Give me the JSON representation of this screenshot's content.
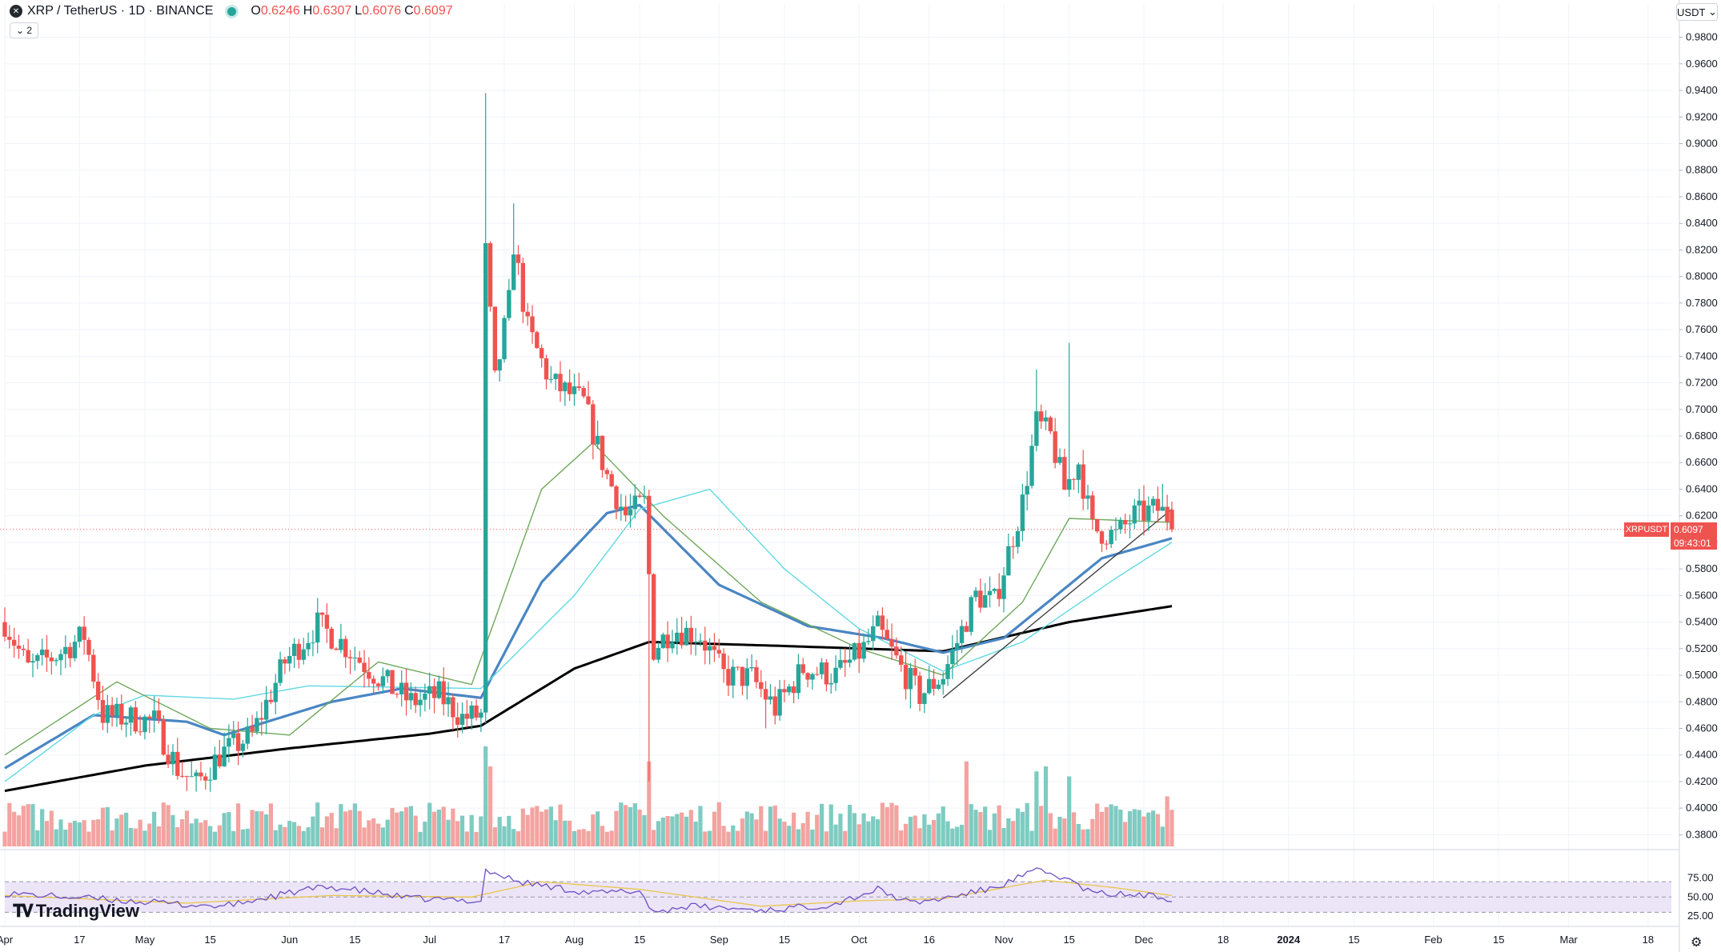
{
  "header": {
    "symbol_title": "XRP / TetherUS · 1D · BINANCE",
    "symbol_icon": "xrp-logo-icon",
    "open_label": "O",
    "open_value": "0.6246",
    "high_label": "H",
    "high_value": "0.6307",
    "low_label": "L",
    "low_value": "0.6076",
    "close_label": "C",
    "close_value": "0.6097",
    "collapse_count": "2"
  },
  "currency_select": {
    "value": "USDT"
  },
  "price_label": {
    "symbol": "XRPUSDT",
    "value": "0.6097",
    "countdown": "09:43:01"
  },
  "branding": {
    "name": "TradingView"
  },
  "colors": {
    "up": "#26a69a",
    "down": "#ef5350",
    "up_volume": "#7ecbc1",
    "down_volume": "#f3a3a0",
    "ma_black": "#000000",
    "ma_blue": "#4a86c3",
    "ma_cyan": "#61d9e4",
    "ma_green": "#6fa85c",
    "trendline": "#444444",
    "rsi_line": "#6c4fc2",
    "rsi_signal": "#e9c54b",
    "rsi_band": "#ece5f8"
  },
  "chart_data": [
    {
      "type": "candlestick",
      "title": "XRP / TetherUS · 1D · BINANCE",
      "xlabel": "",
      "ylabel": "",
      "ylim": [
        0.37,
        0.99
      ],
      "y_ticks": [
        "0.3800",
        "0.4000",
        "0.4200",
        "0.4400",
        "0.4600",
        "0.4800",
        "0.5000",
        "0.5200",
        "0.5400",
        "0.5600",
        "0.5800",
        "0.6000",
        "0.6200",
        "0.6400",
        "0.6600",
        "0.6800",
        "0.7000",
        "0.7200",
        "0.7400",
        "0.7600",
        "0.7800",
        "0.8000",
        "0.8200",
        "0.8400",
        "0.8600",
        "0.8800",
        "0.9000",
        "0.9200",
        "0.9400",
        "0.9600",
        "0.9800"
      ],
      "x_range": [
        "2023-04-01",
        "2024-03-23"
      ],
      "x_ticks": [
        {
          "date": "2023-04-01",
          "label": "Apr"
        },
        {
          "date": "2023-04-17",
          "label": "17"
        },
        {
          "date": "2023-05-01",
          "label": "May"
        },
        {
          "date": "2023-05-15",
          "label": "15"
        },
        {
          "date": "2023-06-01",
          "label": "Jun"
        },
        {
          "date": "2023-06-15",
          "label": "15"
        },
        {
          "date": "2023-07-01",
          "label": "Jul"
        },
        {
          "date": "2023-07-17",
          "label": "17"
        },
        {
          "date": "2023-08-01",
          "label": "Aug"
        },
        {
          "date": "2023-08-15",
          "label": "15"
        },
        {
          "date": "2023-09-01",
          "label": "Sep"
        },
        {
          "date": "2023-09-15",
          "label": "15"
        },
        {
          "date": "2023-10-01",
          "label": "Oct"
        },
        {
          "date": "2023-10-16",
          "label": "16"
        },
        {
          "date": "2023-11-01",
          "label": "Nov"
        },
        {
          "date": "2023-11-15",
          "label": "15"
        },
        {
          "date": "2023-12-01",
          "label": "Dec"
        },
        {
          "date": "2023-12-18",
          "label": "18"
        },
        {
          "date": "2024-01-01",
          "label": "2024"
        },
        {
          "date": "2024-01-15",
          "label": "15"
        },
        {
          "date": "2024-02-01",
          "label": "Feb"
        },
        {
          "date": "2024-02-15",
          "label": "15"
        },
        {
          "date": "2024-03-01",
          "label": "Mar"
        },
        {
          "date": "2024-03-18",
          "label": "18"
        }
      ],
      "anchors": [
        [
          "2023-04-01",
          0.54
        ],
        [
          "2023-04-06",
          0.505
        ],
        [
          "2023-04-12",
          0.515
        ],
        [
          "2023-04-18",
          0.53
        ],
        [
          "2023-04-22",
          0.47
        ],
        [
          "2023-04-27",
          0.468
        ],
        [
          "2023-05-03",
          0.465
        ],
        [
          "2023-05-08",
          0.43
        ],
        [
          "2023-05-12",
          0.418
        ],
        [
          "2023-05-17",
          0.44
        ],
        [
          "2023-05-24",
          0.455
        ],
        [
          "2023-05-31",
          0.51
        ],
        [
          "2023-06-07",
          0.538
        ],
        [
          "2023-06-12",
          0.525
        ],
        [
          "2023-06-18",
          0.505
        ],
        [
          "2023-06-23",
          0.49
        ],
        [
          "2023-06-27",
          0.48
        ],
        [
          "2023-07-03",
          0.485
        ],
        [
          "2023-07-08",
          0.468
        ],
        [
          "2023-07-12",
          0.47
        ],
        [
          "2023-07-13",
          0.818
        ],
        [
          "2023-07-15",
          0.72
        ],
        [
          "2023-07-18",
          0.78
        ],
        [
          "2023-07-19",
          0.825
        ],
        [
          "2023-07-22",
          0.76
        ],
        [
          "2023-07-27",
          0.72
        ],
        [
          "2023-08-03",
          0.705
        ],
        [
          "2023-08-08",
          0.65
        ],
        [
          "2023-08-12",
          0.62
        ],
        [
          "2023-08-16",
          0.63
        ],
        [
          "2023-08-18",
          0.52
        ],
        [
          "2023-08-22",
          0.535
        ],
        [
          "2023-08-28",
          0.53
        ],
        [
          "2023-09-02",
          0.5
        ],
        [
          "2023-09-08",
          0.498
        ],
        [
          "2023-09-13",
          0.475
        ],
        [
          "2023-09-19",
          0.505
        ],
        [
          "2023-09-26",
          0.5
        ],
        [
          "2023-10-02",
          0.52
        ],
        [
          "2023-10-05",
          0.535
        ],
        [
          "2023-10-10",
          0.505
        ],
        [
          "2023-10-14",
          0.485
        ],
        [
          "2023-10-19",
          0.5
        ],
        [
          "2023-10-22",
          0.525
        ],
        [
          "2023-10-26",
          0.56
        ],
        [
          "2023-10-30",
          0.555
        ],
        [
          "2023-11-05",
          0.63
        ],
        [
          "2023-11-08",
          0.69
        ],
        [
          "2023-11-11",
          0.68
        ],
        [
          "2023-11-14",
          0.64
        ],
        [
          "2023-11-17",
          0.66
        ],
        [
          "2023-11-20",
          0.61
        ],
        [
          "2023-11-25",
          0.605
        ],
        [
          "2023-11-29",
          0.62
        ],
        [
          "2023-12-04",
          0.625
        ],
        [
          "2023-12-06",
          0.62
        ],
        [
          "2023-12-07",
          0.6097
        ]
      ],
      "notable_highs": [
        [
          "2023-07-13",
          0.938
        ],
        [
          "2023-07-19",
          0.855
        ],
        [
          "2023-11-08",
          0.73
        ],
        [
          "2023-11-15",
          0.75
        ],
        [
          "2023-12-05",
          0.644
        ]
      ],
      "notable_lows": [
        [
          "2023-08-17",
          0.42
        ],
        [
          "2023-09-11",
          0.46
        ],
        [
          "2023-10-12",
          0.475
        ]
      ],
      "moving_averages": [
        {
          "color": "#000000",
          "anchors": [
            [
              "2023-04-01",
              0.413
            ],
            [
              "2023-05-01",
              0.432
            ],
            [
              "2023-06-01",
              0.445
            ],
            [
              "2023-07-01",
              0.456
            ],
            [
              "2023-07-12",
              0.462
            ],
            [
              "2023-08-01",
              0.505
            ],
            [
              "2023-08-17",
              0.525
            ],
            [
              "2023-09-15",
              0.522
            ],
            [
              "2023-10-19",
              0.518
            ],
            [
              "2023-11-15",
              0.54
            ],
            [
              "2023-12-07",
              0.552
            ]
          ]
        },
        {
          "color": "#4a86c3",
          "anchors": [
            [
              "2023-04-01",
              0.43
            ],
            [
              "2023-04-20",
              0.47
            ],
            [
              "2023-05-10",
              0.465
            ],
            [
              "2023-05-18",
              0.455
            ],
            [
              "2023-06-10",
              0.48
            ],
            [
              "2023-06-25",
              0.49
            ],
            [
              "2023-07-12",
              0.483
            ],
            [
              "2023-07-25",
              0.57
            ],
            [
              "2023-08-08",
              0.622
            ],
            [
              "2023-08-15",
              0.628
            ],
            [
              "2023-09-01",
              0.568
            ],
            [
              "2023-09-20",
              0.537
            ],
            [
              "2023-10-06",
              0.528
            ],
            [
              "2023-10-19",
              0.517
            ],
            [
              "2023-11-01",
              0.528
            ],
            [
              "2023-11-22",
              0.588
            ],
            [
              "2023-12-07",
              0.603
            ]
          ]
        },
        {
          "color": "#61d9e4",
          "anchors": [
            [
              "2023-04-01",
              0.42
            ],
            [
              "2023-04-20",
              0.47
            ],
            [
              "2023-05-01",
              0.485
            ],
            [
              "2023-05-20",
              0.482
            ],
            [
              "2023-06-05",
              0.492
            ],
            [
              "2023-07-12",
              0.49
            ],
            [
              "2023-08-01",
              0.56
            ],
            [
              "2023-08-15",
              0.625
            ],
            [
              "2023-08-30",
              0.64
            ],
            [
              "2023-09-15",
              0.58
            ],
            [
              "2023-10-01",
              0.535
            ],
            [
              "2023-10-19",
              0.503
            ],
            [
              "2023-11-05",
              0.525
            ],
            [
              "2023-11-25",
              0.573
            ],
            [
              "2023-12-07",
              0.6
            ]
          ]
        },
        {
          "color": "#6fa85c",
          "anchors": [
            [
              "2023-04-01",
              0.44
            ],
            [
              "2023-04-25",
              0.495
            ],
            [
              "2023-05-15",
              0.46
            ],
            [
              "2023-06-01",
              0.455
            ],
            [
              "2023-06-20",
              0.51
            ],
            [
              "2023-07-10",
              0.493
            ],
            [
              "2023-07-25",
              0.64
            ],
            [
              "2023-08-05",
              0.675
            ],
            [
              "2023-08-20",
              0.62
            ],
            [
              "2023-09-10",
              0.555
            ],
            [
              "2023-10-01",
              0.52
            ],
            [
              "2023-10-19",
              0.5
            ],
            [
              "2023-11-05",
              0.555
            ],
            [
              "2023-11-15",
              0.618
            ],
            [
              "2023-12-07",
              0.615
            ]
          ]
        }
      ],
      "trendline": [
        [
          "2023-10-19",
          0.483
        ],
        [
          "2023-12-07",
          0.625
        ]
      ]
    },
    {
      "type": "bar",
      "title": "Volume",
      "overlay": "bottom of price pane",
      "note": "bar colors follow candle direction"
    },
    {
      "type": "line",
      "title": "RSI",
      "ylim": [
        20,
        90
      ],
      "y_ticks": [
        "25.00",
        "50.00",
        "75.00"
      ],
      "band": [
        30,
        70
      ],
      "anchors": [
        [
          "2023-04-01",
          55
        ],
        [
          "2023-04-20",
          48
        ],
        [
          "2023-05-10",
          40
        ],
        [
          "2023-05-18",
          38
        ],
        [
          "2023-06-05",
          60
        ],
        [
          "2023-06-10",
          63
        ],
        [
          "2023-06-20",
          55
        ],
        [
          "2023-06-27",
          48
        ],
        [
          "2023-07-12",
          45
        ],
        [
          "2023-07-13",
          85
        ],
        [
          "2023-07-20",
          70
        ],
        [
          "2023-08-05",
          55
        ],
        [
          "2023-08-15",
          58
        ],
        [
          "2023-08-18",
          30
        ],
        [
          "2023-08-25",
          38
        ],
        [
          "2023-09-11",
          33
        ],
        [
          "2023-09-25",
          40
        ],
        [
          "2023-10-05",
          60
        ],
        [
          "2023-10-12",
          42
        ],
        [
          "2023-10-19",
          48
        ],
        [
          "2023-10-30",
          62
        ],
        [
          "2023-11-08",
          85
        ],
        [
          "2023-11-14",
          75
        ],
        [
          "2023-11-20",
          55
        ],
        [
          "2023-12-01",
          52
        ],
        [
          "2023-12-07",
          48
        ]
      ],
      "signal_anchors": [
        [
          "2023-04-01",
          52
        ],
        [
          "2023-05-10",
          42
        ],
        [
          "2023-06-10",
          52
        ],
        [
          "2023-07-10",
          50
        ],
        [
          "2023-07-25",
          70
        ],
        [
          "2023-08-15",
          60
        ],
        [
          "2023-09-10",
          38
        ],
        [
          "2023-10-01",
          45
        ],
        [
          "2023-10-19",
          48
        ],
        [
          "2023-11-10",
          72
        ],
        [
          "2023-11-25",
          62
        ],
        [
          "2023-12-07",
          52
        ]
      ]
    }
  ]
}
